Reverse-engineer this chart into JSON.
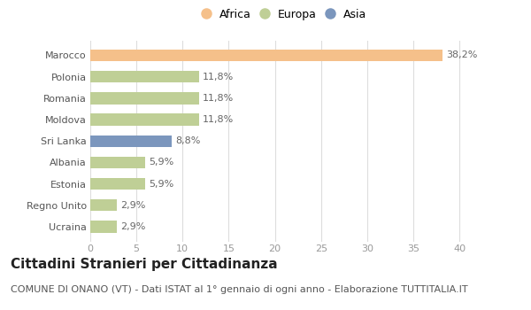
{
  "categories": [
    "Marocco",
    "Polonia",
    "Romania",
    "Moldova",
    "Sri Lanka",
    "Albania",
    "Estonia",
    "Regno Unito",
    "Ucraina"
  ],
  "values": [
    38.2,
    11.8,
    11.8,
    11.8,
    8.8,
    5.9,
    5.9,
    2.9,
    2.9
  ],
  "colors": [
    "#f5c08a",
    "#bfcf96",
    "#bfcf96",
    "#bfcf96",
    "#7b96bd",
    "#bfcf96",
    "#bfcf96",
    "#bfcf96",
    "#bfcf96"
  ],
  "labels": [
    "38,2%",
    "11,8%",
    "11,8%",
    "11,8%",
    "8,8%",
    "5,9%",
    "5,9%",
    "2,9%",
    "2,9%"
  ],
  "legend": [
    {
      "label": "Africa",
      "color": "#f5c08a"
    },
    {
      "label": "Europa",
      "color": "#bfcf96"
    },
    {
      "label": "Asia",
      "color": "#7b96bd"
    }
  ],
  "xlim": [
    0,
    42
  ],
  "xticks": [
    0,
    5,
    10,
    15,
    20,
    25,
    30,
    35,
    40
  ],
  "title": "Cittadini Stranieri per Cittadinanza",
  "subtitle": "COMUNE DI ONANO (VT) - Dati ISTAT al 1° gennaio di ogni anno - Elaborazione TUTTITALIA.IT",
  "background_color": "#ffffff",
  "bar_height": 0.55,
  "title_fontsize": 11,
  "subtitle_fontsize": 8,
  "label_fontsize": 8,
  "tick_fontsize": 8,
  "legend_fontsize": 9
}
